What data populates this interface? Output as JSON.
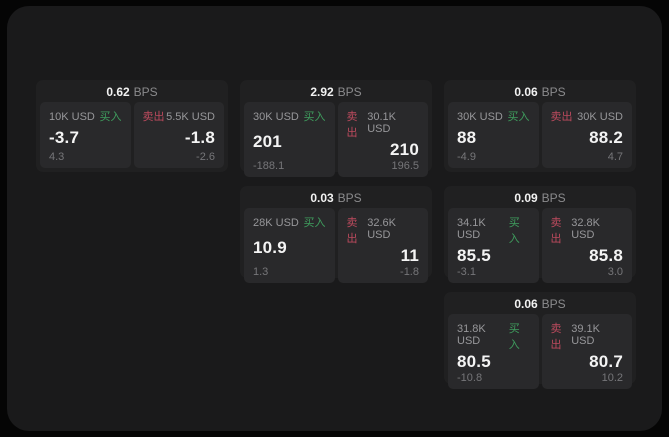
{
  "labels": {
    "bps_suffix": "BPS",
    "buy": "买入",
    "sell": "卖出"
  },
  "colors": {
    "buy_green": "#3f9e5e",
    "sell_red": "#bd4a5e",
    "surface": "#1a1a1b",
    "card": "#202021",
    "panel": "#29292b"
  },
  "cards": [
    {
      "spread_bps": "0.62",
      "buy": {
        "notional": "10K USD",
        "price": "-3.7",
        "delta": "4.3"
      },
      "sell": {
        "notional": "5.5K USD",
        "price": "-1.8",
        "delta": "-2.6"
      }
    },
    {
      "spread_bps": "2.92",
      "buy": {
        "notional": "30K USD",
        "price": "201",
        "delta": "-188.1"
      },
      "sell": {
        "notional": "30.1K USD",
        "price": "210",
        "delta": "196.5"
      }
    },
    {
      "spread_bps": "0.03",
      "buy": {
        "notional": "28K USD",
        "price": "10.9",
        "delta": "1.3"
      },
      "sell": {
        "notional": "32.6K USD",
        "price": "11",
        "delta": "-1.8"
      }
    },
    {
      "spread_bps": "0.06",
      "buy": {
        "notional": "30K USD",
        "price": "88",
        "delta": "-4.9"
      },
      "sell": {
        "notional": "30K USD",
        "price": "88.2",
        "delta": "4.7"
      }
    },
    {
      "spread_bps": "0.09",
      "buy": {
        "notional": "34.1K USD",
        "price": "85.5",
        "delta": "-3.1"
      },
      "sell": {
        "notional": "32.8K USD",
        "price": "85.8",
        "delta": "3.0"
      }
    },
    {
      "spread_bps": "0.06",
      "buy": {
        "notional": "31.8K USD",
        "price": "80.5",
        "delta": "-10.8"
      },
      "sell": {
        "notional": "39.1K USD",
        "price": "80.7",
        "delta": "10.2"
      }
    }
  ]
}
